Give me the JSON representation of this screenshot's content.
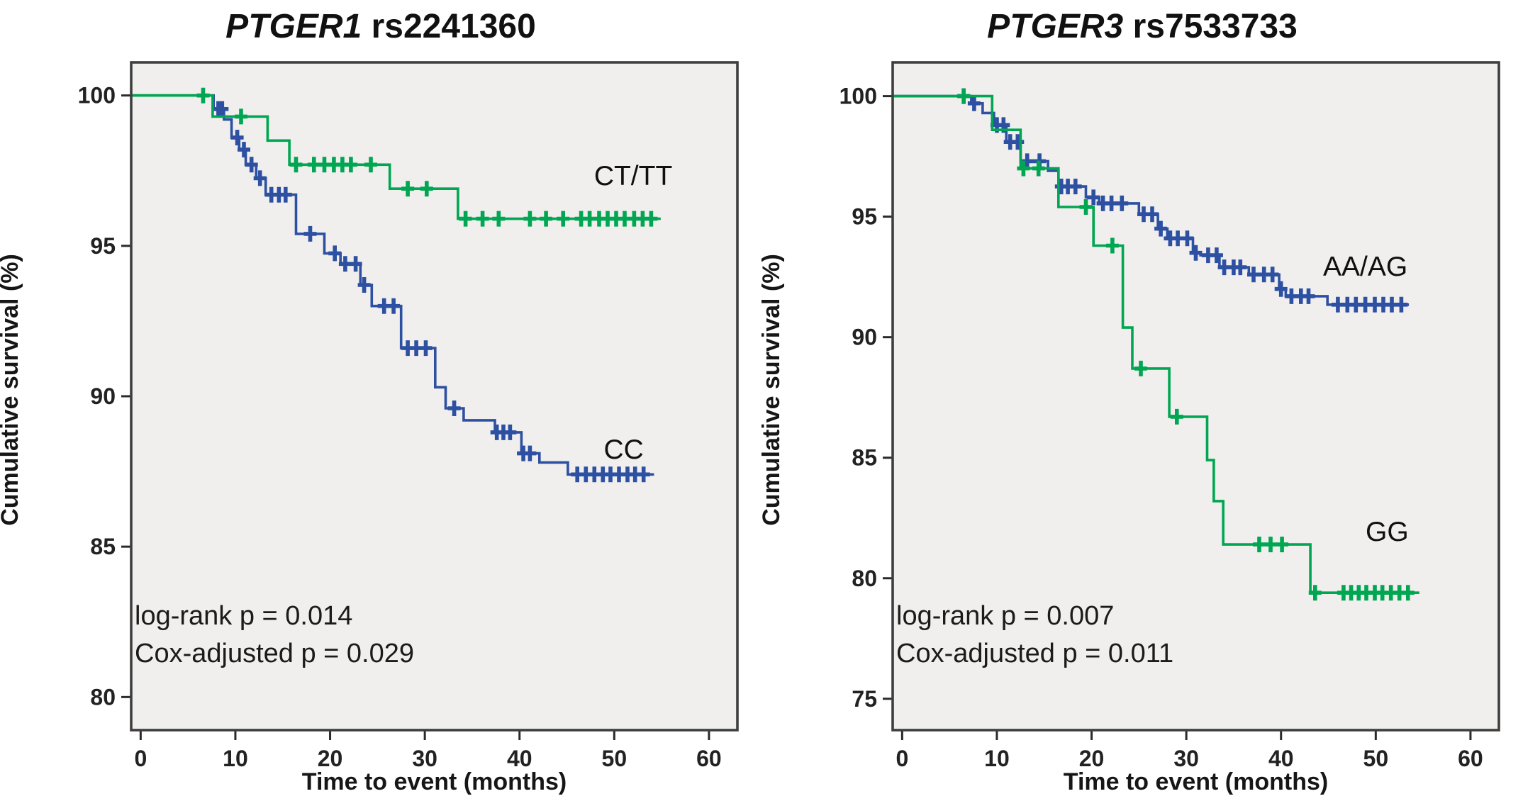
{
  "figure_background": "#ffffff",
  "plot_background": "#f0efed",
  "plot_border_color": "#3e3e3e",
  "tick_color": "#2a2a2a",
  "chart_data": [
    {
      "type": "line",
      "subtype": "kaplan-meier-step",
      "title_gene": "PTGER1",
      "title_rs": "rs2241360",
      "title": "PTGER1 rs2241360",
      "ylabel": "Cumulative survival (%)",
      "xlabel": "Time to event (months)",
      "yticks": [
        100,
        95,
        90,
        85,
        80
      ],
      "xticks": [
        0,
        10,
        20,
        30,
        40,
        50,
        60
      ],
      "ylim": [
        78.9,
        101.1
      ],
      "xlim": [
        -1,
        63
      ],
      "grid": false,
      "legend_position": "labels-on-plot",
      "log_rank_p": "0.014",
      "cox_adjusted_p": "0.029",
      "annotations": [
        "log-rank p = 0.014",
        "Cox-adjusted p = 0.029"
      ],
      "series": [
        {
          "name": "CT/TT",
          "color": "#00a651",
          "draw_order": 2,
          "label_pos": {
            "t": 52.0,
            "v": 97.3
          },
          "steps": [
            [
              0,
              100
            ],
            [
              7.6,
              99.3
            ],
            [
              13.4,
              98.5
            ],
            [
              15.7,
              97.7
            ],
            [
              26.3,
              96.9
            ],
            [
              33.5,
              95.9
            ],
            [
              54.9,
              95.9
            ]
          ],
          "censors": [
            [
              6.6,
              100
            ],
            [
              10.6,
              99.3
            ],
            [
              16.4,
              97.7
            ],
            [
              18.3,
              97.7
            ],
            [
              19.4,
              97.7
            ],
            [
              20.4,
              97.7
            ],
            [
              21.3,
              97.7
            ],
            [
              22.2,
              97.7
            ],
            [
              24.3,
              97.7
            ],
            [
              28.2,
              96.9
            ],
            [
              30.2,
              96.9
            ],
            [
              34.3,
              95.9
            ],
            [
              36.1,
              95.9
            ],
            [
              37.8,
              95.9
            ],
            [
              41.1,
              95.9
            ],
            [
              42.8,
              95.9
            ],
            [
              44.6,
              95.9
            ],
            [
              46.5,
              95.9
            ],
            [
              47.4,
              95.9
            ],
            [
              48.4,
              95.9
            ],
            [
              49.3,
              95.9
            ],
            [
              50.2,
              95.9
            ],
            [
              51.1,
              95.9
            ],
            [
              52.1,
              95.9
            ],
            [
              53.0,
              95.9
            ],
            [
              53.9,
              95.9
            ]
          ]
        },
        {
          "name": "CC",
          "color": "#2d50a2",
          "draw_order": 1,
          "label_pos": {
            "t": 51.0,
            "v": 88.2
          },
          "steps": [
            [
              0,
              100
            ],
            [
              7.7,
              99.55
            ],
            [
              8.8,
              99.2
            ],
            [
              9.6,
              98.6
            ],
            [
              10.4,
              98.2
            ],
            [
              11.1,
              97.7
            ],
            [
              12.2,
              97.25
            ],
            [
              13.2,
              96.7
            ],
            [
              16.4,
              95.4
            ],
            [
              19.4,
              94.75
            ],
            [
              21.1,
              94.4
            ],
            [
              23.2,
              93.7
            ],
            [
              24.4,
              93.0
            ],
            [
              27.5,
              91.6
            ],
            [
              31.1,
              90.3
            ],
            [
              32.2,
              89.6
            ],
            [
              34.1,
              89.2
            ],
            [
              37.4,
              88.8
            ],
            [
              40.2,
              88.1
            ],
            [
              42.1,
              87.8
            ],
            [
              45.1,
              87.4
            ],
            [
              54.2,
              87.4
            ]
          ],
          "censors": [
            [
              8.2,
              99.55
            ],
            [
              8.6,
              99.55
            ],
            [
              10.2,
              98.6
            ],
            [
              10.9,
              98.2
            ],
            [
              11.7,
              97.7
            ],
            [
              12.6,
              97.25
            ],
            [
              13.8,
              96.7
            ],
            [
              14.6,
              96.7
            ],
            [
              15.3,
              96.7
            ],
            [
              17.9,
              95.4
            ],
            [
              20.5,
              94.75
            ],
            [
              21.6,
              94.4
            ],
            [
              22.7,
              94.4
            ],
            [
              23.6,
              93.7
            ],
            [
              25.7,
              93.0
            ],
            [
              26.7,
              93.0
            ],
            [
              28.2,
              91.6
            ],
            [
              29.1,
              91.6
            ],
            [
              30.1,
              91.6
            ],
            [
              33.1,
              89.6
            ],
            [
              37.6,
              88.8
            ],
            [
              38.3,
              88.8
            ],
            [
              39.0,
              88.8
            ],
            [
              40.4,
              88.1
            ],
            [
              41.1,
              88.1
            ],
            [
              46.1,
              87.4
            ],
            [
              47.0,
              87.4
            ],
            [
              47.9,
              87.4
            ],
            [
              48.8,
              87.4
            ],
            [
              49.6,
              87.4
            ],
            [
              50.5,
              87.4
            ],
            [
              51.4,
              87.4
            ],
            [
              52.2,
              87.4
            ],
            [
              53.1,
              87.4
            ]
          ]
        }
      ]
    },
    {
      "type": "line",
      "subtype": "kaplan-meier-step",
      "title_gene": "PTGER3",
      "title_rs": "rs7533733",
      "title": "PTGER3 rs7533733",
      "ylabel": "Cumulative survival (%)",
      "xlabel": "Time to event (months)",
      "yticks": [
        100,
        95,
        90,
        85,
        80,
        75
      ],
      "xticks": [
        0,
        10,
        20,
        30,
        40,
        50,
        60
      ],
      "ylim": [
        73.7,
        101.4
      ],
      "xlim": [
        -1,
        63
      ],
      "grid": false,
      "legend_position": "labels-on-plot",
      "log_rank_p": "0.007",
      "cox_adjusted_p": "0.011",
      "annotations": [
        "log-rank p = 0.007",
        "Cox-adjusted p = 0.011"
      ],
      "series": [
        {
          "name": "AA/AG",
          "color": "#2d50a2",
          "draw_order": 1,
          "label_pos": {
            "t": 48.9,
            "v": 92.9
          },
          "steps": [
            [
              0,
              100
            ],
            [
              7.3,
              99.7
            ],
            [
              8.5,
              99.3
            ],
            [
              9.7,
              98.8
            ],
            [
              11.0,
              98.1
            ],
            [
              12.5,
              97.3
            ],
            [
              15.4,
              96.9
            ],
            [
              16.5,
              96.25
            ],
            [
              19.4,
              95.8
            ],
            [
              20.8,
              95.55
            ],
            [
              25.0,
              95.1
            ],
            [
              27.0,
              94.5
            ],
            [
              28.0,
              94.1
            ],
            [
              30.7,
              93.5
            ],
            [
              31.5,
              93.4
            ],
            [
              33.5,
              92.9
            ],
            [
              36.6,
              92.6
            ],
            [
              39.8,
              92.0
            ],
            [
              40.5,
              91.7
            ],
            [
              44.9,
              91.35
            ],
            [
              53.5,
              91.35
            ]
          ],
          "censors": [
            [
              6.5,
              100
            ],
            [
              7.6,
              99.7
            ],
            [
              10.0,
              98.8
            ],
            [
              10.7,
              98.8
            ],
            [
              11.4,
              98.1
            ],
            [
              12.2,
              98.1
            ],
            [
              13.2,
              97.3
            ],
            [
              14.5,
              97.3
            ],
            [
              16.8,
              96.25
            ],
            [
              17.5,
              96.25
            ],
            [
              18.3,
              96.25
            ],
            [
              20.2,
              95.8
            ],
            [
              21.2,
              95.55
            ],
            [
              22.1,
              95.55
            ],
            [
              23.2,
              95.55
            ],
            [
              25.5,
              95.1
            ],
            [
              26.4,
              95.1
            ],
            [
              27.3,
              94.5
            ],
            [
              28.3,
              94.1
            ],
            [
              29.1,
              94.1
            ],
            [
              30.1,
              94.1
            ],
            [
              31.0,
              93.5
            ],
            [
              32.3,
              93.4
            ],
            [
              33.2,
              93.4
            ],
            [
              34.0,
              92.9
            ],
            [
              35.0,
              92.9
            ],
            [
              35.7,
              92.9
            ],
            [
              37.1,
              92.6
            ],
            [
              38.2,
              92.6
            ],
            [
              39.1,
              92.6
            ],
            [
              40.0,
              92.0
            ],
            [
              41.1,
              91.7
            ],
            [
              42.1,
              91.7
            ],
            [
              42.9,
              91.7
            ],
            [
              46.0,
              91.35
            ],
            [
              47.0,
              91.35
            ],
            [
              47.9,
              91.35
            ],
            [
              48.9,
              91.35
            ],
            [
              49.9,
              91.35
            ],
            [
              50.8,
              91.35
            ],
            [
              51.7,
              91.35
            ],
            [
              52.7,
              91.35
            ]
          ]
        },
        {
          "name": "GG",
          "color": "#00a651",
          "draw_order": 2,
          "label_pos": {
            "t": 51.2,
            "v": 81.9
          },
          "steps": [
            [
              0,
              100
            ],
            [
              9.5,
              98.6
            ],
            [
              12.5,
              97.0
            ],
            [
              16.5,
              95.4
            ],
            [
              20.2,
              93.8
            ],
            [
              23.3,
              90.4
            ],
            [
              24.3,
              88.7
            ],
            [
              28.2,
              86.7
            ],
            [
              32.2,
              84.9
            ],
            [
              32.9,
              83.2
            ],
            [
              33.9,
              81.4
            ],
            [
              43.1,
              79.4
            ],
            [
              54.6,
              79.4
            ]
          ],
          "censors": [
            [
              6.5,
              100
            ],
            [
              12.8,
              97.0
            ],
            [
              14.4,
              97.0
            ],
            [
              19.4,
              95.4
            ],
            [
              22.2,
              93.8
            ],
            [
              25.2,
              88.7
            ],
            [
              29.0,
              86.7
            ],
            [
              37.7,
              81.4
            ],
            [
              38.9,
              81.4
            ],
            [
              40.1,
              81.4
            ],
            [
              43.6,
              79.4
            ],
            [
              46.6,
              79.4
            ],
            [
              47.4,
              79.4
            ],
            [
              48.2,
              79.4
            ],
            [
              49.0,
              79.4
            ],
            [
              49.9,
              79.4
            ],
            [
              50.7,
              79.4
            ],
            [
              51.6,
              79.4
            ],
            [
              52.5,
              79.4
            ],
            [
              53.4,
              79.4
            ]
          ]
        }
      ]
    }
  ]
}
